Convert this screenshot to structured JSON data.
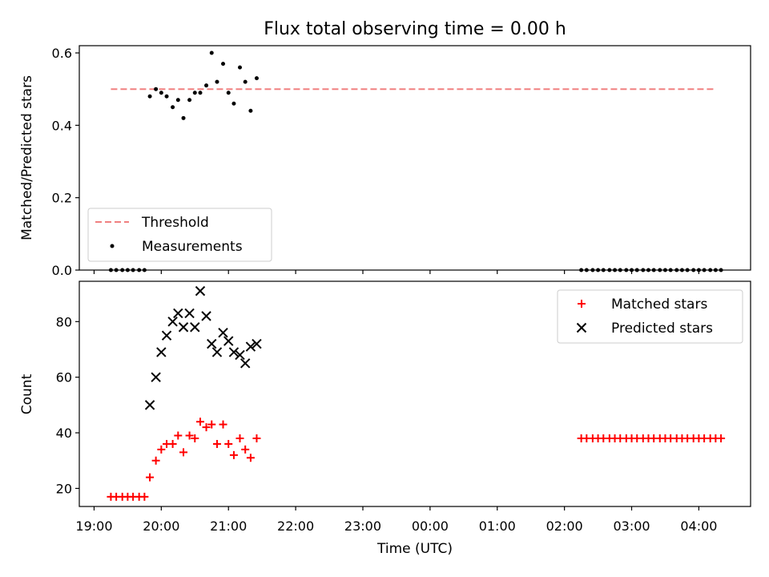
{
  "chart_data": {
    "title": "Flux total observing time = 0.00 h",
    "xlabel": "Time (UTC)",
    "x_tick_labels": [
      "19:00",
      "20:00",
      "21:00",
      "22:00",
      "23:00",
      "00:00",
      "01:00",
      "02:00",
      "03:00",
      "04:00"
    ],
    "x_ticks_hours": [
      19,
      20,
      21,
      22,
      23,
      24,
      25,
      26,
      27,
      28
    ],
    "xlim_hours": [
      18.78,
      28.77
    ],
    "colors": {
      "threshold": "#f08080",
      "matched": "#ff0000",
      "predicted": "#000000",
      "measurement": "#000000"
    },
    "panels": [
      {
        "type": "scatter",
        "ylabel": "Matched/Predicted stars",
        "ylim": [
          0,
          0.62
        ],
        "y_tick_labels": [
          "0.0",
          "0.2",
          "0.4",
          "0.6"
        ],
        "y_ticks": [
          0,
          0.2,
          0.4,
          0.6
        ],
        "legend": {
          "position": "lower-left",
          "entries": [
            "Threshold",
            "Measurements"
          ]
        },
        "threshold": {
          "name": "Threshold",
          "x_range": [
            19.25,
            28.25
          ],
          "y": 0.5
        },
        "measurements": {
          "name": "Measurements",
          "x": [
            19.25,
            19.33,
            19.42,
            19.5,
            19.58,
            19.67,
            19.75,
            19.83,
            19.92,
            20.0,
            20.08,
            20.17,
            20.25,
            20.33,
            20.42,
            20.5,
            20.58,
            20.67,
            20.75,
            20.83,
            20.92,
            21.0,
            21.08,
            21.17,
            21.25,
            21.33,
            21.42,
            26.25,
            26.33,
            26.42,
            26.5,
            26.58,
            26.67,
            26.75,
            26.83,
            26.92,
            27.0,
            27.08,
            27.17,
            27.25,
            27.33,
            27.42,
            27.5,
            27.58,
            27.67,
            27.75,
            27.83,
            27.92,
            28.0,
            28.08,
            28.17,
            28.25,
            28.33
          ],
          "y": [
            0,
            0,
            0,
            0,
            0,
            0,
            0,
            0.48,
            0.5,
            0.49,
            0.48,
            0.45,
            0.47,
            0.42,
            0.47,
            0.49,
            0.49,
            0.51,
            0.6,
            0.52,
            0.57,
            0.49,
            0.46,
            0.56,
            0.52,
            0.44,
            0.53,
            0,
            0,
            0,
            0,
            0,
            0,
            0,
            0,
            0,
            0,
            0,
            0,
            0,
            0,
            0,
            0,
            0,
            0,
            0,
            0,
            0,
            0,
            0,
            0,
            0,
            0
          ]
        }
      },
      {
        "type": "scatter",
        "ylabel": "Count",
        "ylim": [
          13.5,
          94.5
        ],
        "y_tick_labels": [
          "20",
          "40",
          "60",
          "80"
        ],
        "y_ticks": [
          20,
          40,
          60,
          80
        ],
        "legend": {
          "position": "top-right",
          "entries": [
            "Matched stars",
            "Predicted stars"
          ]
        },
        "series": [
          {
            "name": "Matched stars",
            "marker": "+",
            "x": [
              19.25,
              19.33,
              19.42,
              19.5,
              19.58,
              19.67,
              19.75,
              19.83,
              19.92,
              20.0,
              20.08,
              20.17,
              20.25,
              20.33,
              20.42,
              20.5,
              20.58,
              20.67,
              20.75,
              20.83,
              20.92,
              21.0,
              21.08,
              21.17,
              21.25,
              21.33,
              21.42,
              26.25,
              26.33,
              26.42,
              26.5,
              26.58,
              26.67,
              26.75,
              26.83,
              26.92,
              27.0,
              27.08,
              27.17,
              27.25,
              27.33,
              27.42,
              27.5,
              27.58,
              27.67,
              27.75,
              27.83,
              27.92,
              28.0,
              28.08,
              28.17,
              28.25,
              28.33
            ],
            "y": [
              17,
              17,
              17,
              17,
              17,
              17,
              17,
              24,
              30,
              34,
              36,
              36,
              39,
              33,
              39,
              38,
              44,
              42,
              43,
              36,
              43,
              36,
              32,
              38,
              34,
              31,
              38,
              38,
              38,
              38,
              38,
              38,
              38,
              38,
              38,
              38,
              38,
              38,
              38,
              38,
              38,
              38,
              38,
              38,
              38,
              38,
              38,
              38,
              38,
              38,
              38,
              38,
              38
            ]
          },
          {
            "name": "Predicted stars",
            "marker": "x",
            "x": [
              19.83,
              19.92,
              20.0,
              20.08,
              20.17,
              20.25,
              20.33,
              20.42,
              20.5,
              20.58,
              20.67,
              20.75,
              20.83,
              20.92,
              21.0,
              21.08,
              21.17,
              21.25,
              21.33,
              21.42
            ],
            "y": [
              50,
              60,
              69,
              75,
              80,
              83,
              78,
              83,
              78,
              91,
              82,
              72,
              69,
              76,
              73,
              69,
              68,
              65,
              71,
              72
            ]
          }
        ]
      }
    ]
  }
}
